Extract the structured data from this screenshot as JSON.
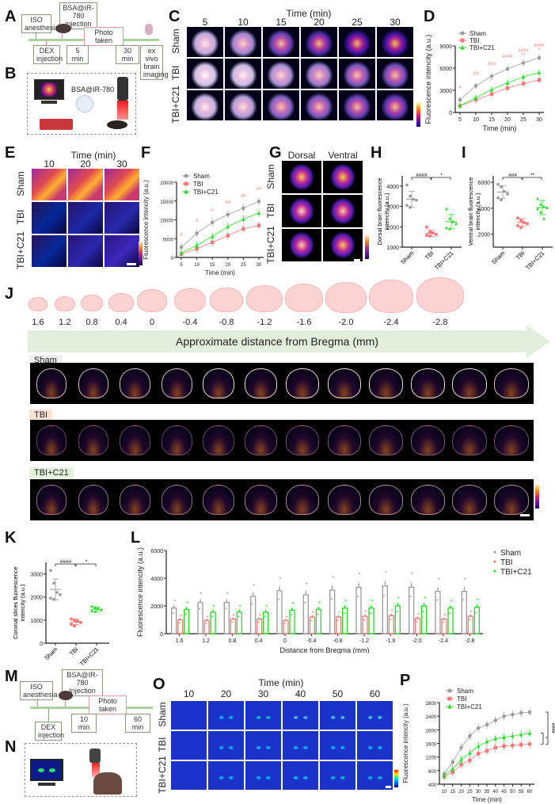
{
  "panels": {
    "A": {
      "label": "A",
      "boxes": {
        "iso": "ISO anesthesia",
        "bsa": "BSA@IR-780 injection",
        "photo": "Photo taken",
        "dex": "DEX injection",
        "t5": "5 min",
        "t30": "30 min",
        "exvivo": "ex vivo brain imaging"
      }
    },
    "B": {
      "label": "B",
      "probe": "BSA@IR-780"
    },
    "C": {
      "label": "C",
      "title": "Time (min)",
      "columns": [
        "5",
        "10",
        "15",
        "20",
        "25",
        "30"
      ],
      "rows": [
        "Sham",
        "TBI",
        "TBI+C21"
      ]
    },
    "D": {
      "label": "D"
    },
    "E": {
      "label": "E",
      "title": "Time (min)",
      "columns": [
        "10",
        "20",
        "30"
      ],
      "rows": [
        "Sham",
        "TBI",
        "TBI+C21"
      ]
    },
    "F": {
      "label": "F"
    },
    "G": {
      "label": "G",
      "columns": [
        "Dorsal",
        "Ventral"
      ],
      "rows": [
        "Sham",
        "TBI",
        "TBI+C21"
      ]
    },
    "H": {
      "label": "H"
    },
    "I": {
      "label": "I"
    },
    "J": {
      "label": "J",
      "positions": [
        "1.6",
        "1.2",
        "0.8",
        "0.4",
        "0",
        "-0.4",
        "-0.8",
        "-1.2",
        "-1.6",
        "-2.0",
        "-2.4",
        "-2.8"
      ],
      "arrow_label": "Approximate distance from Bregma (mm)",
      "groups": [
        "Sham",
        "TBI",
        "TBI+C21"
      ]
    },
    "K": {
      "label": "K"
    },
    "L": {
      "label": "L"
    },
    "M": {
      "label": "M",
      "boxes": {
        "iso": "ISO anesthesia",
        "bsa": "BSA@IR-780 Injection",
        "photo": "Photo taken",
        "dex": "DEX injection",
        "t10": "10 min",
        "t60": "60 min"
      }
    },
    "N": {
      "label": "N"
    },
    "O": {
      "label": "O",
      "title": "Time (min)",
      "columns": [
        "10",
        "20",
        "30",
        "40",
        "50",
        "60"
      ],
      "rows": [
        "Sham",
        "TBI",
        "TBI+C21"
      ]
    },
    "P": {
      "label": "P"
    }
  },
  "colors": {
    "sham": "#9a9a9a",
    "tbi": "#f07a7a",
    "c21": "#22dd22",
    "timeline": "#a6d39a"
  },
  "chart_data": [
    {
      "id": "D",
      "type": "line",
      "xlabel": "Time (min)",
      "ylabel": "Fluorescence intencity (a.u.)",
      "x": [
        5,
        10,
        15,
        20,
        25,
        30
      ],
      "ylim": [
        0,
        9000
      ],
      "yticks": [
        0,
        3000,
        6000,
        9000
      ],
      "series": [
        {
          "name": "Sham",
          "values": [
            1700,
            3600,
            4900,
            5900,
            6700,
            7400
          ]
        },
        {
          "name": "TBI",
          "values": [
            900,
            1700,
            2500,
            3300,
            3900,
            4400
          ]
        },
        {
          "name": "TBI+C21",
          "values": [
            900,
            2000,
            3100,
            4000,
            4800,
            5400
          ]
        }
      ],
      "annotations": [
        "#",
        "##",
        "###",
        "####",
        "####\n**",
        "####\n*"
      ],
      "legend": [
        "Sham",
        "TBI",
        "TBI+C21"
      ]
    },
    {
      "id": "F",
      "type": "line",
      "xlabel": "Time (min)",
      "ylabel": "Fluorescence intencity (a.u.)",
      "x": [
        5,
        10,
        15,
        20,
        25,
        30
      ],
      "ylim": [
        0,
        20000
      ],
      "yticks": [
        0,
        5000,
        10000,
        15000,
        20000
      ],
      "series": [
        {
          "name": "Sham",
          "values": [
            2700,
            6400,
            9300,
            11400,
            13100,
            14900
          ]
        },
        {
          "name": "TBI",
          "values": [
            900,
            2300,
            4000,
            5800,
            7600,
            8500
          ]
        },
        {
          "name": "TBI+C21",
          "values": [
            1200,
            3200,
            5600,
            8200,
            10200,
            11800
          ]
        }
      ],
      "annotations": [
        "#",
        "#",
        "#",
        "##",
        "##",
        "##"
      ],
      "legend": [
        "Sham",
        "TBI",
        "TBI+C21"
      ]
    },
    {
      "id": "H",
      "type": "scatter",
      "ylabel": "Dorsal brain fluorescence intencity (a.u.)",
      "categories": [
        "Sham",
        "TBI",
        "TBI+C21"
      ],
      "ylim": [
        1000,
        4500
      ],
      "yticks": [
        1000,
        2000,
        3000,
        4000
      ],
      "means": [
        3350,
        1680,
        2250
      ],
      "sd": [
        400,
        150,
        350
      ],
      "points": [
        [
          4050,
          3500,
          3350,
          3300,
          3050,
          2950
        ],
        [
          1980,
          1750,
          1700,
          1620,
          1580,
          1550
        ],
        [
          2880,
          2400,
          2250,
          2150,
          1950,
          1900
        ]
      ],
      "significance": [
        {
          "pair": [
            "Sham",
            "TBI"
          ],
          "mark": "####"
        },
        {
          "pair": [
            "TBI",
            "TBI+C21"
          ],
          "mark": "*"
        }
      ]
    },
    {
      "id": "I",
      "type": "scatter",
      "ylabel": "Ventral brain fluorescence intencity (a.u.)",
      "categories": [
        "Sham",
        "TBI",
        "TBI+C21"
      ],
      "ylim": [
        1000,
        6500
      ],
      "yticks": [
        2000,
        4000,
        6000
      ],
      "means": [
        5250,
        2900,
        4050
      ],
      "sd": [
        500,
        300,
        550
      ],
      "points": [
        [
          5850,
          5650,
          5300,
          5100,
          4800,
          4650
        ],
        [
          3250,
          3050,
          2900,
          2800,
          2650,
          2500
        ],
        [
          4750,
          4300,
          4150,
          4050,
          3950,
          3700,
          3200
        ]
      ],
      "significance": [
        {
          "pair": [
            "Sham",
            "TBI"
          ],
          "mark": "###"
        },
        {
          "pair": [
            "TBI",
            "TBI+C21"
          ],
          "mark": "**"
        }
      ]
    },
    {
      "id": "K",
      "type": "scatter",
      "ylabel": "Coronal slices fluorescence intencity (a.u.)",
      "categories": [
        "Sham",
        "TBI",
        "TBI+C21"
      ],
      "ylim": [
        0,
        3500
      ],
      "yticks": [
        0,
        1000,
        2000,
        3000
      ],
      "means": [
        2330,
        920,
        1470
      ],
      "sd": [
        450,
        120,
        100
      ],
      "points": [
        [
          3150,
          2600,
          2200,
          2100,
          1950,
          1900
        ],
        [
          1050,
          1000,
          950,
          900,
          820,
          750
        ],
        [
          1600,
          1550,
          1500,
          1450,
          1400,
          1380
        ]
      ],
      "significance": [
        {
          "pair": [
            "Sham",
            "TBI"
          ],
          "mark": "####"
        },
        {
          "pair": [
            "TBI",
            "TBI+C21"
          ],
          "mark": "*"
        }
      ]
    },
    {
      "id": "L",
      "type": "bar",
      "xlabel": "Distance from Bregma (mm)",
      "ylabel": "Fluorescence intencity (a.u.)",
      "categories": [
        "1.6",
        "1.2",
        "0.8",
        "0.4",
        "0",
        "-0.4",
        "-0.8",
        "-1.2",
        "-1.6",
        "-2.0",
        "-2.4",
        "-2.8"
      ],
      "ylim": [
        0,
        6000
      ],
      "yticks": [
        0,
        2000,
        4000,
        6000
      ],
      "series": [
        {
          "name": "Sham",
          "values": [
            1850,
            2250,
            2250,
            2700,
            3100,
            2800,
            3150,
            3350,
            3450,
            3350,
            3050,
            3050
          ]
        },
        {
          "name": "TBI",
          "values": [
            1000,
            950,
            1050,
            1050,
            950,
            1200,
            1200,
            1250,
            1300,
            1100,
            1050,
            1250
          ]
        },
        {
          "name": "TBI+C21",
          "values": [
            1750,
            1550,
            1550,
            1550,
            1700,
            1750,
            1850,
            1850,
            2000,
            2000,
            1850,
            1900
          ]
        }
      ],
      "legend": [
        "Sham",
        "TBI",
        "TBI+C21"
      ]
    },
    {
      "id": "P",
      "type": "line",
      "xlabel": "Time (min)",
      "ylabel": "Fluorescence intencity (a.u.)",
      "x": [
        10,
        15,
        20,
        25,
        30,
        35,
        40,
        45,
        50,
        55,
        60
      ],
      "ylim": [
        400,
        2800
      ],
      "yticks": [
        400,
        800,
        1200,
        1600,
        2000,
        2400,
        2800
      ],
      "series": [
        {
          "name": "Sham",
          "values": [
            700,
            1050,
            1480,
            1820,
            2050,
            2150,
            2280,
            2400,
            2450,
            2500,
            2520
          ]
        },
        {
          "name": "TBI",
          "values": [
            620,
            750,
            980,
            1100,
            1300,
            1380,
            1480,
            1520,
            1540,
            1560,
            1580
          ]
        },
        {
          "name": "TBI+C21",
          "values": [
            650,
            850,
            1120,
            1320,
            1520,
            1650,
            1740,
            1780,
            1820,
            1860,
            1900
          ]
        }
      ],
      "significance": [
        {
          "pair": [
            "TBI",
            "TBI+C21"
          ],
          "mark": "*"
        },
        {
          "pair": [
            "Sham",
            "TBI"
          ],
          "mark": "####"
        }
      ],
      "legend": [
        "Sham",
        "TBI",
        "TBI+C21"
      ]
    }
  ]
}
